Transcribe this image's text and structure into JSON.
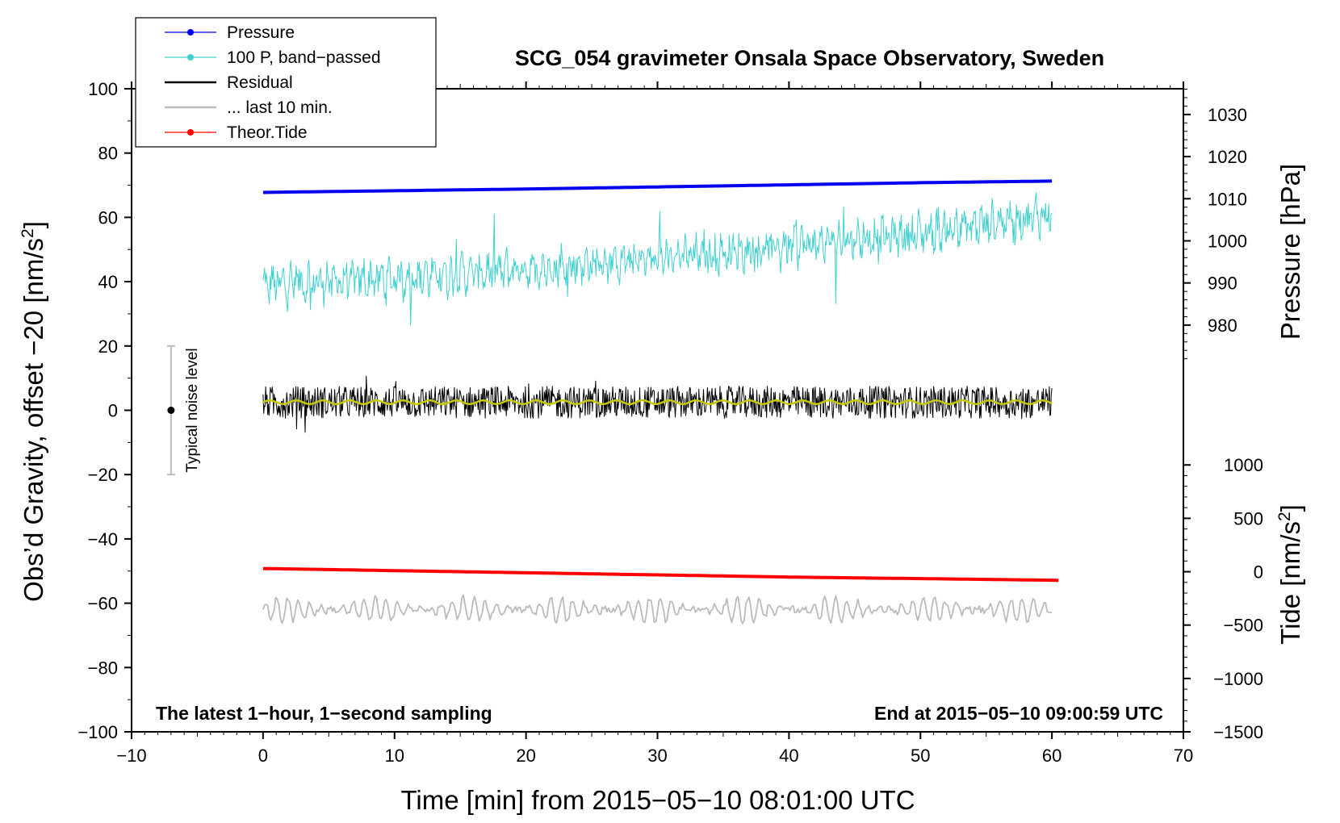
{
  "chart_data": {
    "type": "line",
    "title": "SCG_054 gravimeter Onsala Space Observatory, Sweden",
    "xlabel": "Time [min] from 2015−05−10 08:01:00 UTC",
    "ylabel": "Obs’d Gravity, offset −20 [nm/s²]",
    "ylabel_parts": {
      "main": "Obs’d Gravity, offset −20 [nm/s",
      "sup": "2",
      "end": "]"
    },
    "xlim": [
      -10,
      70
    ],
    "ylim": [
      -100,
      100
    ],
    "x_ticks": [
      -10,
      0,
      10,
      20,
      30,
      40,
      50,
      60,
      70
    ],
    "x_tick_labels": [
      "−10",
      "0",
      "10",
      "20",
      "30",
      "40",
      "50",
      "60",
      "70"
    ],
    "y_ticks": [
      -100,
      -80,
      -60,
      -40,
      -20,
      0,
      20,
      40,
      60,
      80,
      100
    ],
    "y_tick_labels": [
      "−100",
      "−80",
      "−60",
      "−40",
      "−20",
      "0",
      "20",
      "40",
      "60",
      "80",
      "100"
    ],
    "right_axes": [
      {
        "name": "pressure",
        "label": "Pressure [hPa]",
        "ticks": [
          980,
          990,
          1000,
          1010,
          1020,
          1030
        ],
        "tick_labels": [
          "980",
          "990",
          "1000",
          "1010",
          "1020",
          "1030"
        ],
        "mapping": {
          "value_a": 980,
          "gravity_a": 26.5,
          "value_b": 1030,
          "gravity_b": 92
        }
      },
      {
        "name": "tide",
        "label_parts": {
          "main": "Tide [nm/s",
          "sup": "2",
          "end": "]"
        },
        "ticks": [
          -1500,
          -1000,
          -500,
          0,
          500,
          1000
        ],
        "tick_labels": [
          "−1500",
          "−1000",
          "−500",
          "0",
          "500",
          "1000"
        ],
        "mapping": {
          "value_a": -1500,
          "gravity_a": -100,
          "value_b": 1000,
          "gravity_b": -17
        }
      }
    ],
    "series": [
      {
        "name": "Pressure",
        "axis": "pressure",
        "color": "#0000ee",
        "x": [
          0,
          10,
          20,
          30,
          40,
          50,
          60
        ],
        "values": [
          1011.5,
          1011.9,
          1012.3,
          1012.8,
          1013.3,
          1013.8,
          1014.2
        ]
      },
      {
        "name": "100 P, band−passed",
        "axis": "gravity",
        "color": "#40d0d0",
        "x": [
          0,
          10,
          20,
          30,
          40,
          50,
          60
        ],
        "values": [
          39,
          41,
          44,
          47,
          51,
          55,
          61
        ]
      },
      {
        "name": "Residual",
        "axis": "gravity",
        "color": "#000000",
        "x": [
          0,
          10,
          20,
          30,
          40,
          50,
          60
        ],
        "values": [
          2.5,
          2.5,
          2.5,
          2.5,
          2.5,
          2.5,
          2.5
        ]
      },
      {
        "name": "... last 10 min.",
        "axis": "gravity",
        "color": "#bbbbbb",
        "x": [
          0,
          10,
          20,
          30,
          40,
          50,
          60
        ],
        "values": [
          -62,
          -62,
          -62,
          -62,
          -62,
          -62,
          -62
        ]
      },
      {
        "name": "Theor.Tide",
        "axis": "tide",
        "color": "#ff0000",
        "x": [
          0,
          10,
          20,
          30,
          40,
          50,
          60,
          60.5
        ],
        "values": [
          30,
          10,
          -10,
          -30,
          -50,
          -65,
          -80,
          -82
        ]
      }
    ],
    "legend": [
      {
        "label": "Pressure",
        "color": "#0000ee",
        "marker": true
      },
      {
        "label": "100 P, band−passed",
        "color": "#40d0d0",
        "marker": true
      },
      {
        "label": "Residual",
        "color": "#000000",
        "marker": false
      },
      {
        "label": "... last 10 min.",
        "color": "#bbbbbb",
        "marker": false
      },
      {
        "label": "Theor.Tide",
        "color": "#ff0000",
        "marker": true
      }
    ],
    "legend_position": "top-left",
    "noise_marker": {
      "label": "Typical noise level",
      "x": -7,
      "center": 0,
      "low": -20,
      "high": 20
    },
    "annotations": {
      "left": "The latest 1−hour, 1−second sampling",
      "right": "End at 2015−05−10 09:00:59 UTC"
    },
    "colors": {
      "residual_mean": "#c8c800",
      "noise_bar": "#bbbbbb"
    }
  }
}
